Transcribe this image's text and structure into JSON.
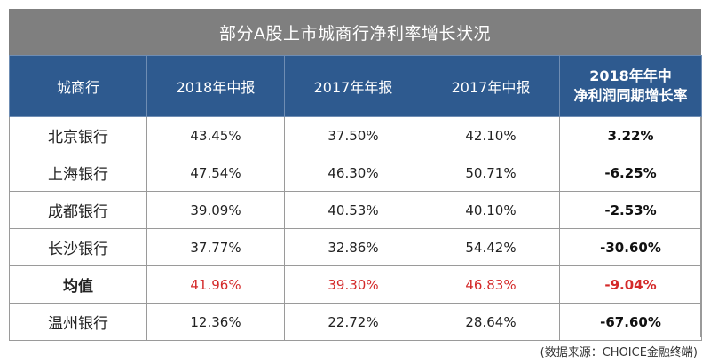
{
  "title": "部分A股上市城商行净利率增长状况",
  "headers": {
    "bank": "城商行",
    "h2018": "2018年中报",
    "y2017": "2017年年报",
    "h2017": "2017年中报",
    "growth_line1": "2018年年中",
    "growth_line2": "净利润同期增长率"
  },
  "rows": [
    {
      "name": "北京银行",
      "h2018": "43.45%",
      "y2017": "37.50%",
      "h2017": "42.10%",
      "growth": "3.22%"
    },
    {
      "name": "上海银行",
      "h2018": "47.54%",
      "y2017": "46.30%",
      "h2017": "50.71%",
      "growth": "-6.25%"
    },
    {
      "name": "成都银行",
      "h2018": "39.09%",
      "y2017": "40.53%",
      "h2017": "40.10%",
      "growth": "-2.53%"
    },
    {
      "name": "长沙银行",
      "h2018": "37.77%",
      "y2017": "32.86%",
      "h2017": "54.42%",
      "growth": "-30.60%"
    },
    {
      "name": "均值",
      "h2018": "41.96%",
      "y2017": "39.30%",
      "h2017": "46.83%",
      "growth": "-9.04%"
    },
    {
      "name": "温州银行",
      "h2018": "12.36%",
      "y2017": "22.72%",
      "h2017": "28.64%",
      "growth": "-67.60%"
    }
  ],
  "source": "(数据来源：CHOICE金融终端)",
  "colors": {
    "title_bg": "#7f7f7f",
    "header_bg": "#2e5a8f",
    "highlight": "#d42a2a"
  }
}
